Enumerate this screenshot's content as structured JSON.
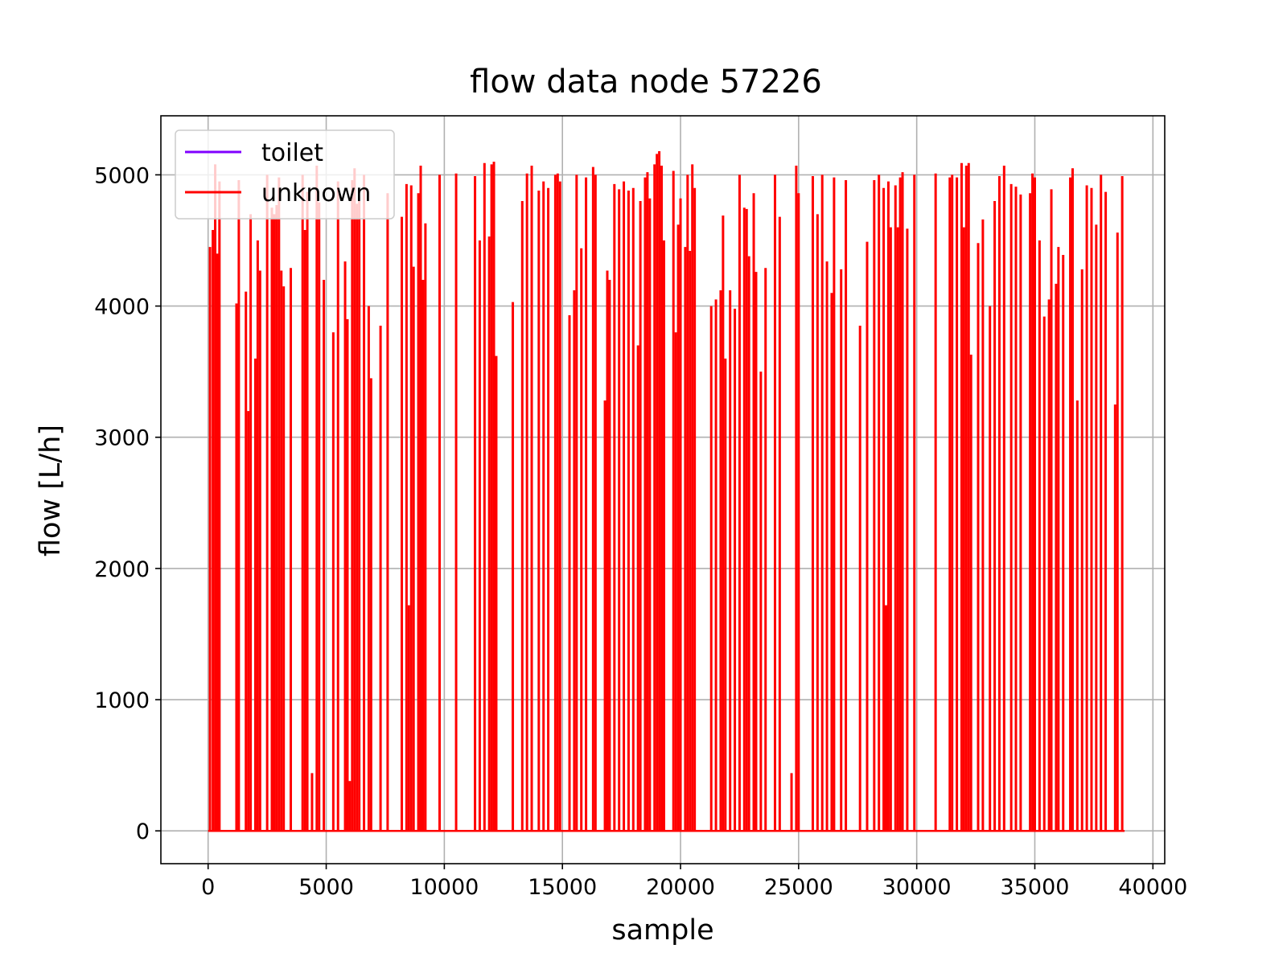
{
  "chart_data": {
    "type": "line",
    "title": "flow data node 57226",
    "xlabel": "sample",
    "ylabel": "flow [L/h]",
    "xlim": [
      -2000,
      40500
    ],
    "ylim": [
      -250,
      5450
    ],
    "xticks": [
      0,
      5000,
      10000,
      15000,
      20000,
      25000,
      30000,
      35000,
      40000
    ],
    "yticks": [
      0,
      1000,
      2000,
      3000,
      4000,
      5000
    ],
    "grid": true,
    "legend_position": "top-left",
    "series": [
      {
        "name": "toilet",
        "color": "#8000ff",
        "points": []
      },
      {
        "name": "unknown",
        "color": "#ff0000",
        "x_range": [
          0,
          38800
        ],
        "baseline": 0,
        "spikes": [
          [
            80,
            4450
          ],
          [
            200,
            4580
          ],
          [
            300,
            5080
          ],
          [
            400,
            4400
          ],
          [
            480,
            4950
          ],
          [
            1200,
            4020
          ],
          [
            1300,
            4960
          ],
          [
            1600,
            4110
          ],
          [
            1700,
            3200
          ],
          [
            1800,
            4700
          ],
          [
            2000,
            3600
          ],
          [
            2100,
            4500
          ],
          [
            2200,
            4270
          ],
          [
            2500,
            5000
          ],
          [
            2700,
            4750
          ],
          [
            2800,
            4700
          ],
          [
            2900,
            4770
          ],
          [
            3000,
            4980
          ],
          [
            3100,
            4270
          ],
          [
            3200,
            4150
          ],
          [
            3500,
            4290
          ],
          [
            4000,
            5000
          ],
          [
            4100,
            4580
          ],
          [
            4200,
            4870
          ],
          [
            4400,
            440
          ],
          [
            4600,
            5070
          ],
          [
            4700,
            4790
          ],
          [
            4900,
            4200
          ],
          [
            5300,
            3800
          ],
          [
            5500,
            4950
          ],
          [
            5800,
            4340
          ],
          [
            5900,
            3900
          ],
          [
            6000,
            380
          ],
          [
            6100,
            4960
          ],
          [
            6200,
            5050
          ],
          [
            6300,
            4780
          ],
          [
            6400,
            4800
          ],
          [
            6600,
            5000
          ],
          [
            6800,
            4000
          ],
          [
            6900,
            3450
          ],
          [
            7300,
            3850
          ],
          [
            7600,
            4860
          ],
          [
            8200,
            4680
          ],
          [
            8400,
            4930
          ],
          [
            8500,
            1720
          ],
          [
            8600,
            4920
          ],
          [
            8700,
            4300
          ],
          [
            8900,
            4860
          ],
          [
            9000,
            5070
          ],
          [
            9100,
            4200
          ],
          [
            9200,
            4630
          ],
          [
            9800,
            5000
          ],
          [
            10500,
            5010
          ],
          [
            11300,
            4990
          ],
          [
            11500,
            4500
          ],
          [
            11700,
            5090
          ],
          [
            11900,
            4530
          ],
          [
            12000,
            5080
          ],
          [
            12100,
            5100
          ],
          [
            12200,
            3620
          ],
          [
            12900,
            4030
          ],
          [
            13300,
            4800
          ],
          [
            13500,
            5010
          ],
          [
            13700,
            5070
          ],
          [
            14000,
            4880
          ],
          [
            14200,
            4950
          ],
          [
            14400,
            4900
          ],
          [
            14700,
            5000
          ],
          [
            14800,
            5010
          ],
          [
            14900,
            4950
          ],
          [
            15300,
            3930
          ],
          [
            15500,
            4120
          ],
          [
            15600,
            5000
          ],
          [
            15800,
            4440
          ],
          [
            16000,
            4980
          ],
          [
            16300,
            5060
          ],
          [
            16400,
            5000
          ],
          [
            16800,
            3280
          ],
          [
            16900,
            4270
          ],
          [
            17000,
            4200
          ],
          [
            17200,
            4930
          ],
          [
            17400,
            4890
          ],
          [
            17600,
            4950
          ],
          [
            17800,
            4880
          ],
          [
            18000,
            4900
          ],
          [
            18200,
            3700
          ],
          [
            18300,
            4800
          ],
          [
            18500,
            4980
          ],
          [
            18600,
            5020
          ],
          [
            18700,
            4820
          ],
          [
            18900,
            5080
          ],
          [
            19000,
            5160
          ],
          [
            19100,
            5180
          ],
          [
            19200,
            5070
          ],
          [
            19300,
            4500
          ],
          [
            19700,
            5030
          ],
          [
            19800,
            3800
          ],
          [
            19900,
            4620
          ],
          [
            20000,
            4820
          ],
          [
            20200,
            4450
          ],
          [
            20300,
            5000
          ],
          [
            20400,
            4420
          ],
          [
            20500,
            5080
          ],
          [
            20600,
            4900
          ],
          [
            21300,
            4000
          ],
          [
            21500,
            4050
          ],
          [
            21700,
            4120
          ],
          [
            21800,
            4690
          ],
          [
            21900,
            3600
          ],
          [
            22100,
            4120
          ],
          [
            22300,
            3980
          ],
          [
            22500,
            5000
          ],
          [
            22700,
            4750
          ],
          [
            22800,
            4740
          ],
          [
            22900,
            4380
          ],
          [
            23100,
            4860
          ],
          [
            23200,
            4260
          ],
          [
            23400,
            3500
          ],
          [
            23600,
            4290
          ],
          [
            24000,
            5000
          ],
          [
            24200,
            4680
          ],
          [
            24700,
            440
          ],
          [
            24900,
            5070
          ],
          [
            25000,
            4860
          ],
          [
            25600,
            4990
          ],
          [
            25800,
            4700
          ],
          [
            26000,
            5000
          ],
          [
            26200,
            4340
          ],
          [
            26400,
            4100
          ],
          [
            26500,
            4980
          ],
          [
            26800,
            4280
          ],
          [
            27000,
            4960
          ],
          [
            27600,
            3850
          ],
          [
            27900,
            4490
          ],
          [
            28200,
            4960
          ],
          [
            28400,
            5000
          ],
          [
            28600,
            4900
          ],
          [
            28700,
            1720
          ],
          [
            28800,
            4950
          ],
          [
            28900,
            4600
          ],
          [
            29100,
            4920
          ],
          [
            29200,
            4600
          ],
          [
            29300,
            4980
          ],
          [
            29400,
            5020
          ],
          [
            29600,
            4590
          ],
          [
            29900,
            5000
          ],
          [
            30800,
            5010
          ],
          [
            31400,
            4980
          ],
          [
            31500,
            5000
          ],
          [
            31700,
            4980
          ],
          [
            31900,
            5090
          ],
          [
            32000,
            4600
          ],
          [
            32100,
            5070
          ],
          [
            32200,
            5090
          ],
          [
            32300,
            3630
          ],
          [
            32600,
            4480
          ],
          [
            32800,
            4660
          ],
          [
            33100,
            4000
          ],
          [
            33300,
            4800
          ],
          [
            33500,
            4990
          ],
          [
            33700,
            5070
          ],
          [
            34000,
            4930
          ],
          [
            34200,
            4910
          ],
          [
            34400,
            4850
          ],
          [
            34800,
            4860
          ],
          [
            34900,
            5010
          ],
          [
            35000,
            4980
          ],
          [
            35200,
            4500
          ],
          [
            35400,
            3920
          ],
          [
            35600,
            4050
          ],
          [
            35700,
            4890
          ],
          [
            35900,
            4170
          ],
          [
            36000,
            4450
          ],
          [
            36200,
            4390
          ],
          [
            36500,
            4980
          ],
          [
            36600,
            5050
          ],
          [
            36800,
            3280
          ],
          [
            37000,
            4280
          ],
          [
            37200,
            4920
          ],
          [
            37400,
            4900
          ],
          [
            37600,
            4620
          ],
          [
            37800,
            5000
          ],
          [
            38000,
            4870
          ],
          [
            38400,
            3250
          ],
          [
            38500,
            4560
          ],
          [
            38700,
            4990
          ]
        ]
      }
    ]
  }
}
